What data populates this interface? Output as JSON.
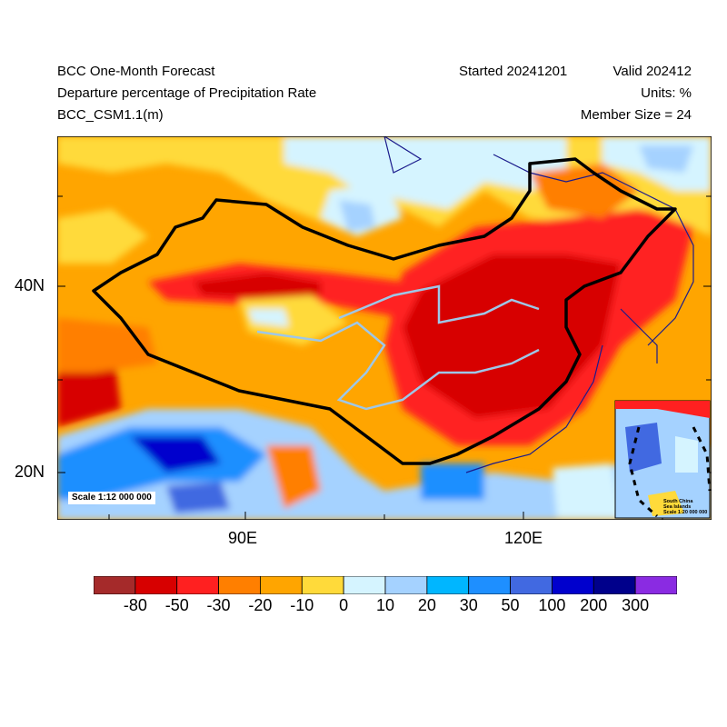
{
  "header": {
    "title": "BCC One-Month Forecast",
    "subtitle": "Departure percentage of Precipitation Rate",
    "model": "BCC_CSM1.1(m)",
    "started": "Started 20241201",
    "valid": "Valid 202412",
    "units": "Units: %",
    "member_size": "Member Size = 24"
  },
  "map": {
    "lat_labels": [
      "40N",
      "20N"
    ],
    "lon_labels": [
      "90E",
      "120E"
    ],
    "scale_label": "Scale 1:12 000 000",
    "inset": {
      "title_line1": "South China",
      "title_line2": "Sea Islands",
      "scale_label": "Scale 1:20 000 000"
    },
    "colors": {
      "border": "#000000",
      "coast": "#1a1a8c",
      "river": "#9ec7e8"
    }
  },
  "colorbar": {
    "labels": [
      "-80",
      "-50",
      "-30",
      "-20",
      "-10",
      "0",
      "10",
      "20",
      "30",
      "50",
      "100",
      "200",
      "300"
    ],
    "colors": [
      "#a52a2a",
      "#d70000",
      "#ff2020",
      "#ff7f00",
      "#ffa500",
      "#ffda3a",
      "#d5f4ff",
      "#a5d2ff",
      "#00b6ff",
      "#1e8fff",
      "#4169e1",
      "#0000cd",
      "#00008b",
      "#8a2be2"
    ]
  }
}
